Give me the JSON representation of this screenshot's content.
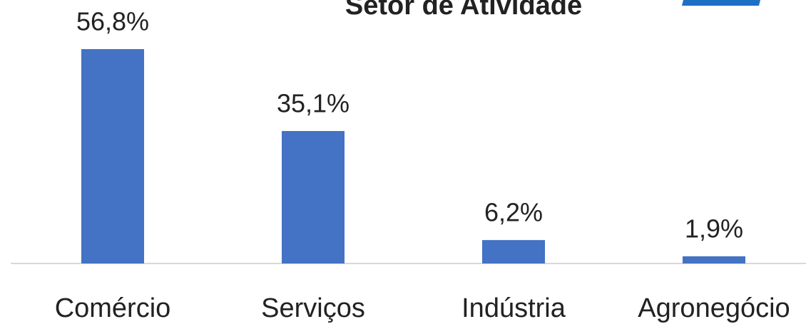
{
  "chart_data": {
    "type": "bar",
    "title": "Setor de Atividade",
    "categories": [
      "Comércio",
      "Serviços",
      "Indústria",
      "Agronegócio"
    ],
    "values": [
      56.8,
      35.1,
      6.2,
      1.9
    ],
    "value_labels": [
      "56,8%",
      "35,1%",
      "6,2%",
      "1,9%"
    ],
    "color": "#4472c4"
  }
}
